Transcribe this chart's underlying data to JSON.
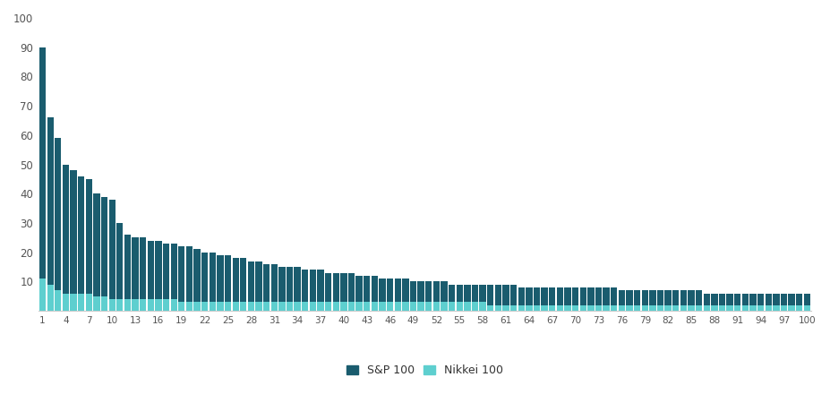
{
  "sp100_values": [
    90,
    66,
    59,
    50,
    48,
    46,
    45,
    40,
    39,
    38,
    30,
    26,
    25,
    25,
    24,
    24,
    23,
    23,
    22,
    22,
    21,
    20,
    20,
    19,
    19,
    18,
    18,
    17,
    17,
    16,
    16,
    15,
    15,
    15,
    14,
    14,
    14,
    13,
    13,
    13,
    13,
    12,
    12,
    12,
    11,
    11,
    11,
    11,
    10,
    10,
    10,
    10,
    10,
    9,
    9,
    9,
    9,
    9,
    9,
    9,
    9,
    9,
    8,
    8,
    8,
    8,
    8,
    8,
    8,
    8,
    8,
    8,
    8,
    8,
    8,
    7,
    7,
    7,
    7,
    7,
    7,
    7,
    7,
    7,
    7,
    7,
    6,
    6,
    6,
    6,
    6,
    6,
    6,
    6,
    6,
    6,
    6,
    6,
    6,
    6
  ],
  "nikkei100_values": [
    11,
    9,
    7,
    6,
    6,
    6,
    6,
    5,
    5,
    4,
    4,
    4,
    4,
    4,
    4,
    4,
    4,
    4,
    3,
    3,
    3,
    3,
    3,
    3,
    3,
    3,
    3,
    3,
    3,
    3,
    3,
    3,
    3,
    3,
    3,
    3,
    3,
    3,
    3,
    3,
    3,
    3,
    3,
    3,
    3,
    3,
    3,
    3,
    3,
    3,
    3,
    3,
    3,
    3,
    3,
    3,
    3,
    3,
    2,
    2,
    2,
    2,
    2,
    2,
    2,
    2,
    2,
    2,
    2,
    2,
    2,
    2,
    2,
    2,
    2,
    2,
    2,
    2,
    2,
    2,
    2,
    2,
    2,
    2,
    2,
    2,
    2,
    2,
    2,
    2,
    2,
    2,
    2,
    2,
    2,
    2,
    2,
    2,
    2,
    2
  ],
  "x_tick_positions": [
    0,
    3,
    6,
    9,
    12,
    15,
    18,
    21,
    24,
    27,
    30,
    33,
    36,
    39,
    42,
    45,
    48,
    51,
    54,
    57,
    60,
    63,
    66,
    69,
    72,
    75,
    78,
    81,
    84,
    87,
    90,
    93,
    96,
    99
  ],
  "x_tick_labels": [
    "1",
    "4",
    "7",
    "10",
    "13",
    "16",
    "19",
    "22",
    "25",
    "28",
    "31",
    "34",
    "37",
    "40",
    "43",
    "46",
    "49",
    "52",
    "55",
    "58",
    "61",
    "64",
    "67",
    "70",
    "73",
    "76",
    "79",
    "82",
    "85",
    "88",
    "91",
    "94",
    "97",
    "100"
  ],
  "sp100_color": "#1a5c6e",
  "nikkei100_color": "#5ecfcf",
  "background_color": "#ffffff",
  "ylim": [
    0,
    100
  ],
  "yticks": [
    10,
    20,
    30,
    40,
    50,
    60,
    70,
    80,
    90,
    100
  ],
  "legend_sp100": "S&P 100",
  "legend_nikkei100": "Nikkei 100"
}
